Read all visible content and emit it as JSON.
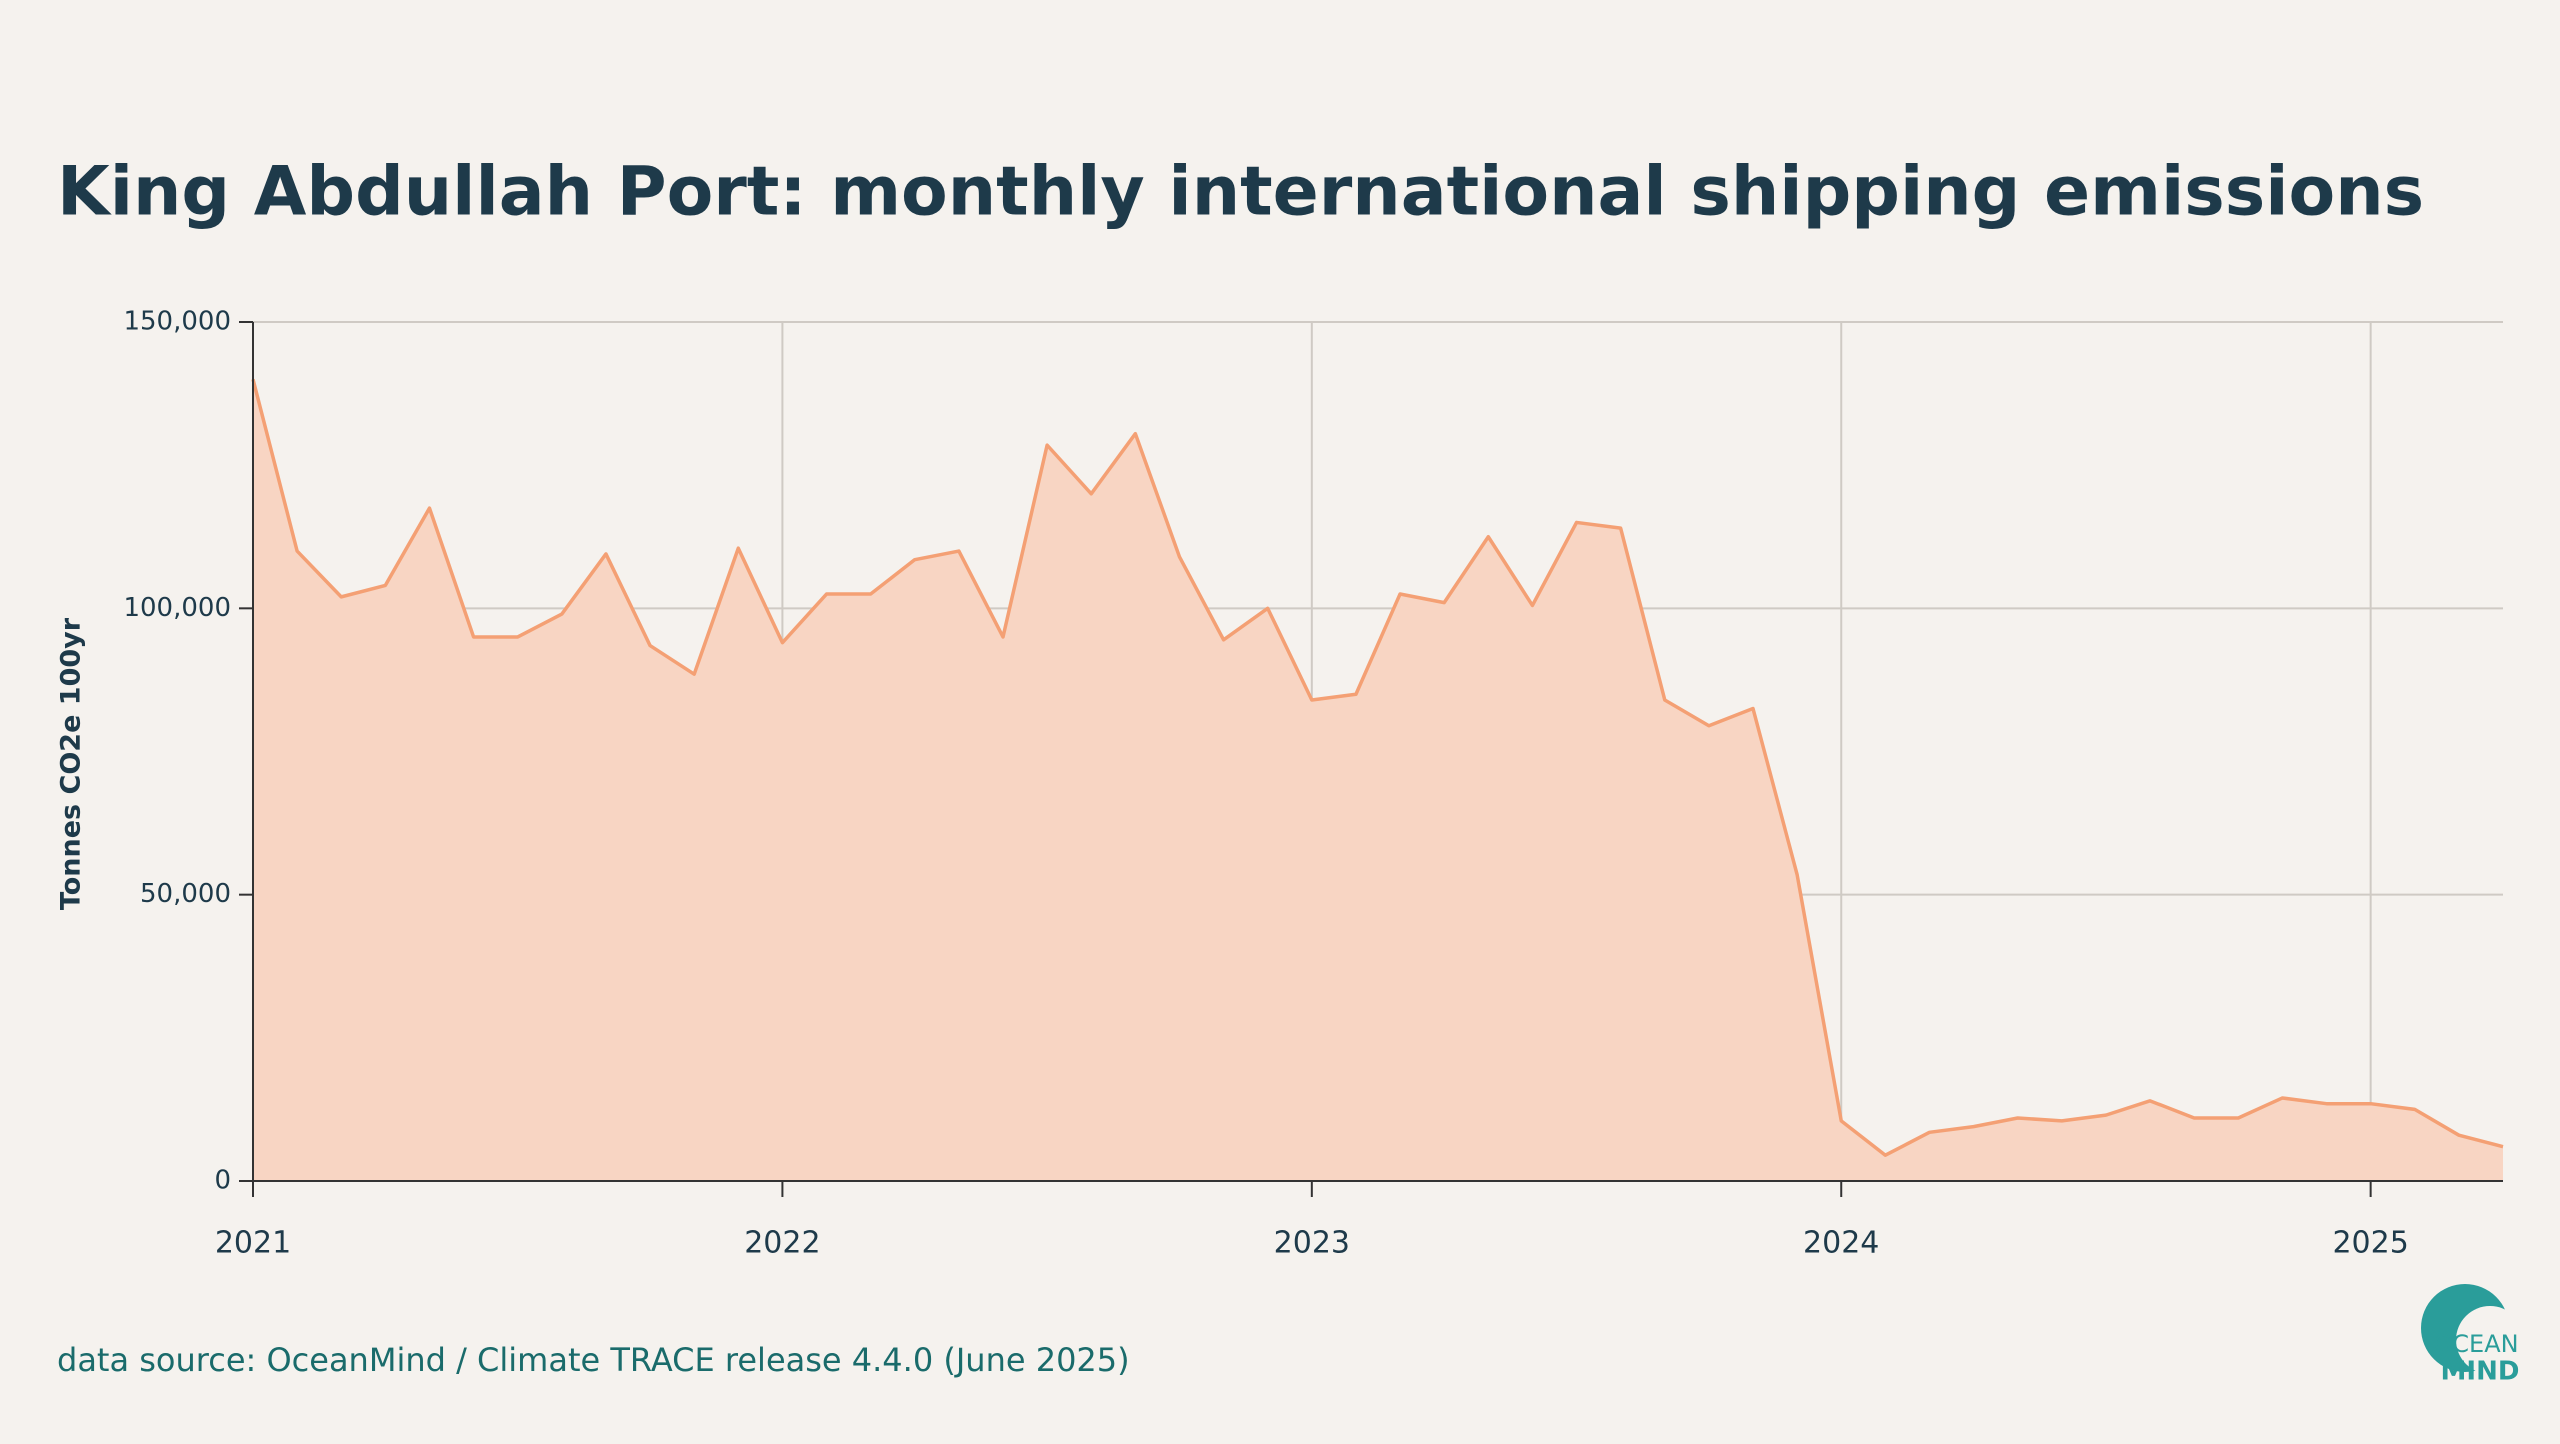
{
  "chart_data": {
    "type": "area",
    "title": "King Abdullah Port: monthly international shipping emissions",
    "y_label": "Tonnes CO2e 100yr",
    "source": "data source: OceanMind / Climate TRACE release 4.4.0 (June 2025)",
    "logo_text": [
      "OCEAN",
      "MIND"
    ],
    "x": [
      "2021-01",
      "2021-02",
      "2021-03",
      "2021-04",
      "2021-05",
      "2021-06",
      "2021-07",
      "2021-08",
      "2021-09",
      "2021-10",
      "2021-11",
      "2021-12",
      "2022-01",
      "2022-02",
      "2022-03",
      "2022-04",
      "2022-05",
      "2022-06",
      "2022-07",
      "2022-08",
      "2022-09",
      "2022-10",
      "2022-11",
      "2022-12",
      "2023-01",
      "2023-02",
      "2023-03",
      "2023-04",
      "2023-05",
      "2023-06",
      "2023-07",
      "2023-08",
      "2023-09",
      "2023-10",
      "2023-11",
      "2023-12",
      "2024-01",
      "2024-02",
      "2024-03",
      "2024-04",
      "2024-05",
      "2024-06",
      "2024-07",
      "2024-08",
      "2024-09",
      "2024-10",
      "2024-11",
      "2024-12",
      "2025-01",
      "2025-02",
      "2025-03",
      "2025-04"
    ],
    "series": [
      {
        "name": "Emissions",
        "color": "#f4a074",
        "fill": "#f8d5c3",
        "values": [
          140000,
          110000,
          102000,
          104000,
          117500,
          95000,
          95000,
          99000,
          109500,
          93500,
          88500,
          110500,
          94000,
          102500,
          102500,
          108500,
          110000,
          95000,
          128500,
          120000,
          130500,
          109000,
          94500,
          100000,
          84000,
          85000,
          102500,
          101000,
          112500,
          100500,
          115000,
          114000,
          84000,
          79500,
          82500,
          53500,
          10500,
          4500,
          8500,
          9500,
          11000,
          10500,
          11500,
          14000,
          11000,
          11000,
          14500,
          13500,
          13500,
          12500,
          8000,
          6000
        ]
      }
    ],
    "xlim": [
      "2021-01",
      "2025-04"
    ],
    "xticks": [
      "2021",
      "2022",
      "2023",
      "2024",
      "2025"
    ],
    "ylim": [
      0,
      150000
    ],
    "yticks": [
      0,
      {
        "value": 50000,
        "label": "50,000"
      },
      {
        "value": 100000,
        "label": "100,000"
      },
      {
        "value": 150000,
        "label": "150,000"
      }
    ],
    "grid": true
  }
}
